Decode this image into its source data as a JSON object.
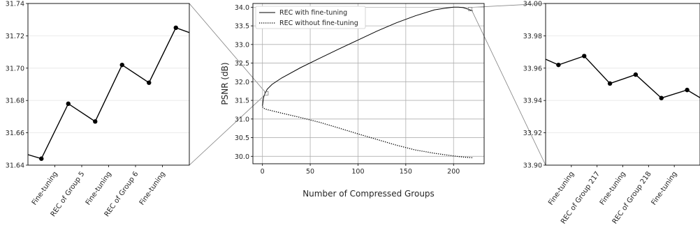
{
  "chart_data": [
    {
      "type": "line",
      "panel": "left-zoom",
      "x_tick_labels": [
        "Fine-tuning",
        "REC of Group 5",
        "Fine-tuning",
        "REC of Group 6",
        "Fine-tuning"
      ],
      "ylim": [
        31.64,
        31.74
      ],
      "y_ticks": [
        "31.74",
        "31.72",
        "31.70",
        "31.68",
        "31.66",
        "31.64"
      ],
      "grid": true,
      "series": [
        {
          "x": [
            -1,
            0,
            1,
            2,
            3,
            4,
            5,
            6
          ],
          "y": [
            31.649,
            31.644,
            31.678,
            31.667,
            31.702,
            31.691,
            31.725,
            31.719
          ]
        }
      ]
    },
    {
      "type": "line",
      "panel": "main",
      "xlabel": "Number of Compressed Groups",
      "ylabel": "PSNR (dB)",
      "xlim": [
        -10,
        232
      ],
      "ylim": [
        29.8,
        34.1
      ],
      "x_ticks": [
        "0",
        "50",
        "100",
        "150",
        "200"
      ],
      "y_ticks": [
        "34.0",
        "33.5",
        "33.0",
        "32.5",
        "32.0",
        "31.5",
        "31.0",
        "30.5",
        "30.0"
      ],
      "grid": true,
      "legend": "top-left",
      "series": [
        {
          "name": "REC with fine-tuning",
          "style": "solid",
          "x": [
            0,
            1,
            2,
            5,
            10,
            20,
            40,
            60,
            80,
            100,
            120,
            140,
            160,
            180,
            190,
            200,
            205,
            210,
            215,
            220
          ],
          "y": [
            31.35,
            31.55,
            31.65,
            31.8,
            31.93,
            32.1,
            32.38,
            32.63,
            32.88,
            33.12,
            33.36,
            33.58,
            33.77,
            33.93,
            33.97,
            34.0,
            34.0,
            33.99,
            33.95,
            33.9
          ]
        },
        {
          "name": "REC without fine-tuning",
          "style": "dotted",
          "x": [
            0,
            2,
            5,
            10,
            20,
            30,
            40,
            60,
            80,
            100,
            120,
            140,
            160,
            180,
            200,
            210,
            220
          ],
          "y": [
            31.33,
            31.28,
            31.25,
            31.22,
            31.16,
            31.1,
            31.04,
            30.91,
            30.76,
            30.6,
            30.45,
            30.3,
            30.17,
            30.08,
            30.01,
            29.98,
            29.96
          ]
        }
      ]
    },
    {
      "type": "line",
      "panel": "right-zoom",
      "x_tick_labels": [
        "Fine-tuning",
        "REC of Group 217",
        "Fine-tuning",
        "REC of Group 218",
        "Fine-tuning"
      ],
      "ylim": [
        33.9,
        34.0
      ],
      "y_ticks": [
        "34.00",
        "33.98",
        "33.96",
        "33.94",
        "33.92",
        "33.90"
      ],
      "grid": true,
      "series": [
        {
          "x": [
            -1,
            0,
            1,
            2,
            3,
            4,
            5,
            6
          ],
          "y": [
            33.969,
            33.962,
            33.9675,
            33.9505,
            33.956,
            33.9415,
            33.9465,
            33.937
          ]
        }
      ]
    }
  ],
  "colors": {
    "line": "#000000",
    "grid": "#b0b0b0",
    "connector": "#808080"
  }
}
